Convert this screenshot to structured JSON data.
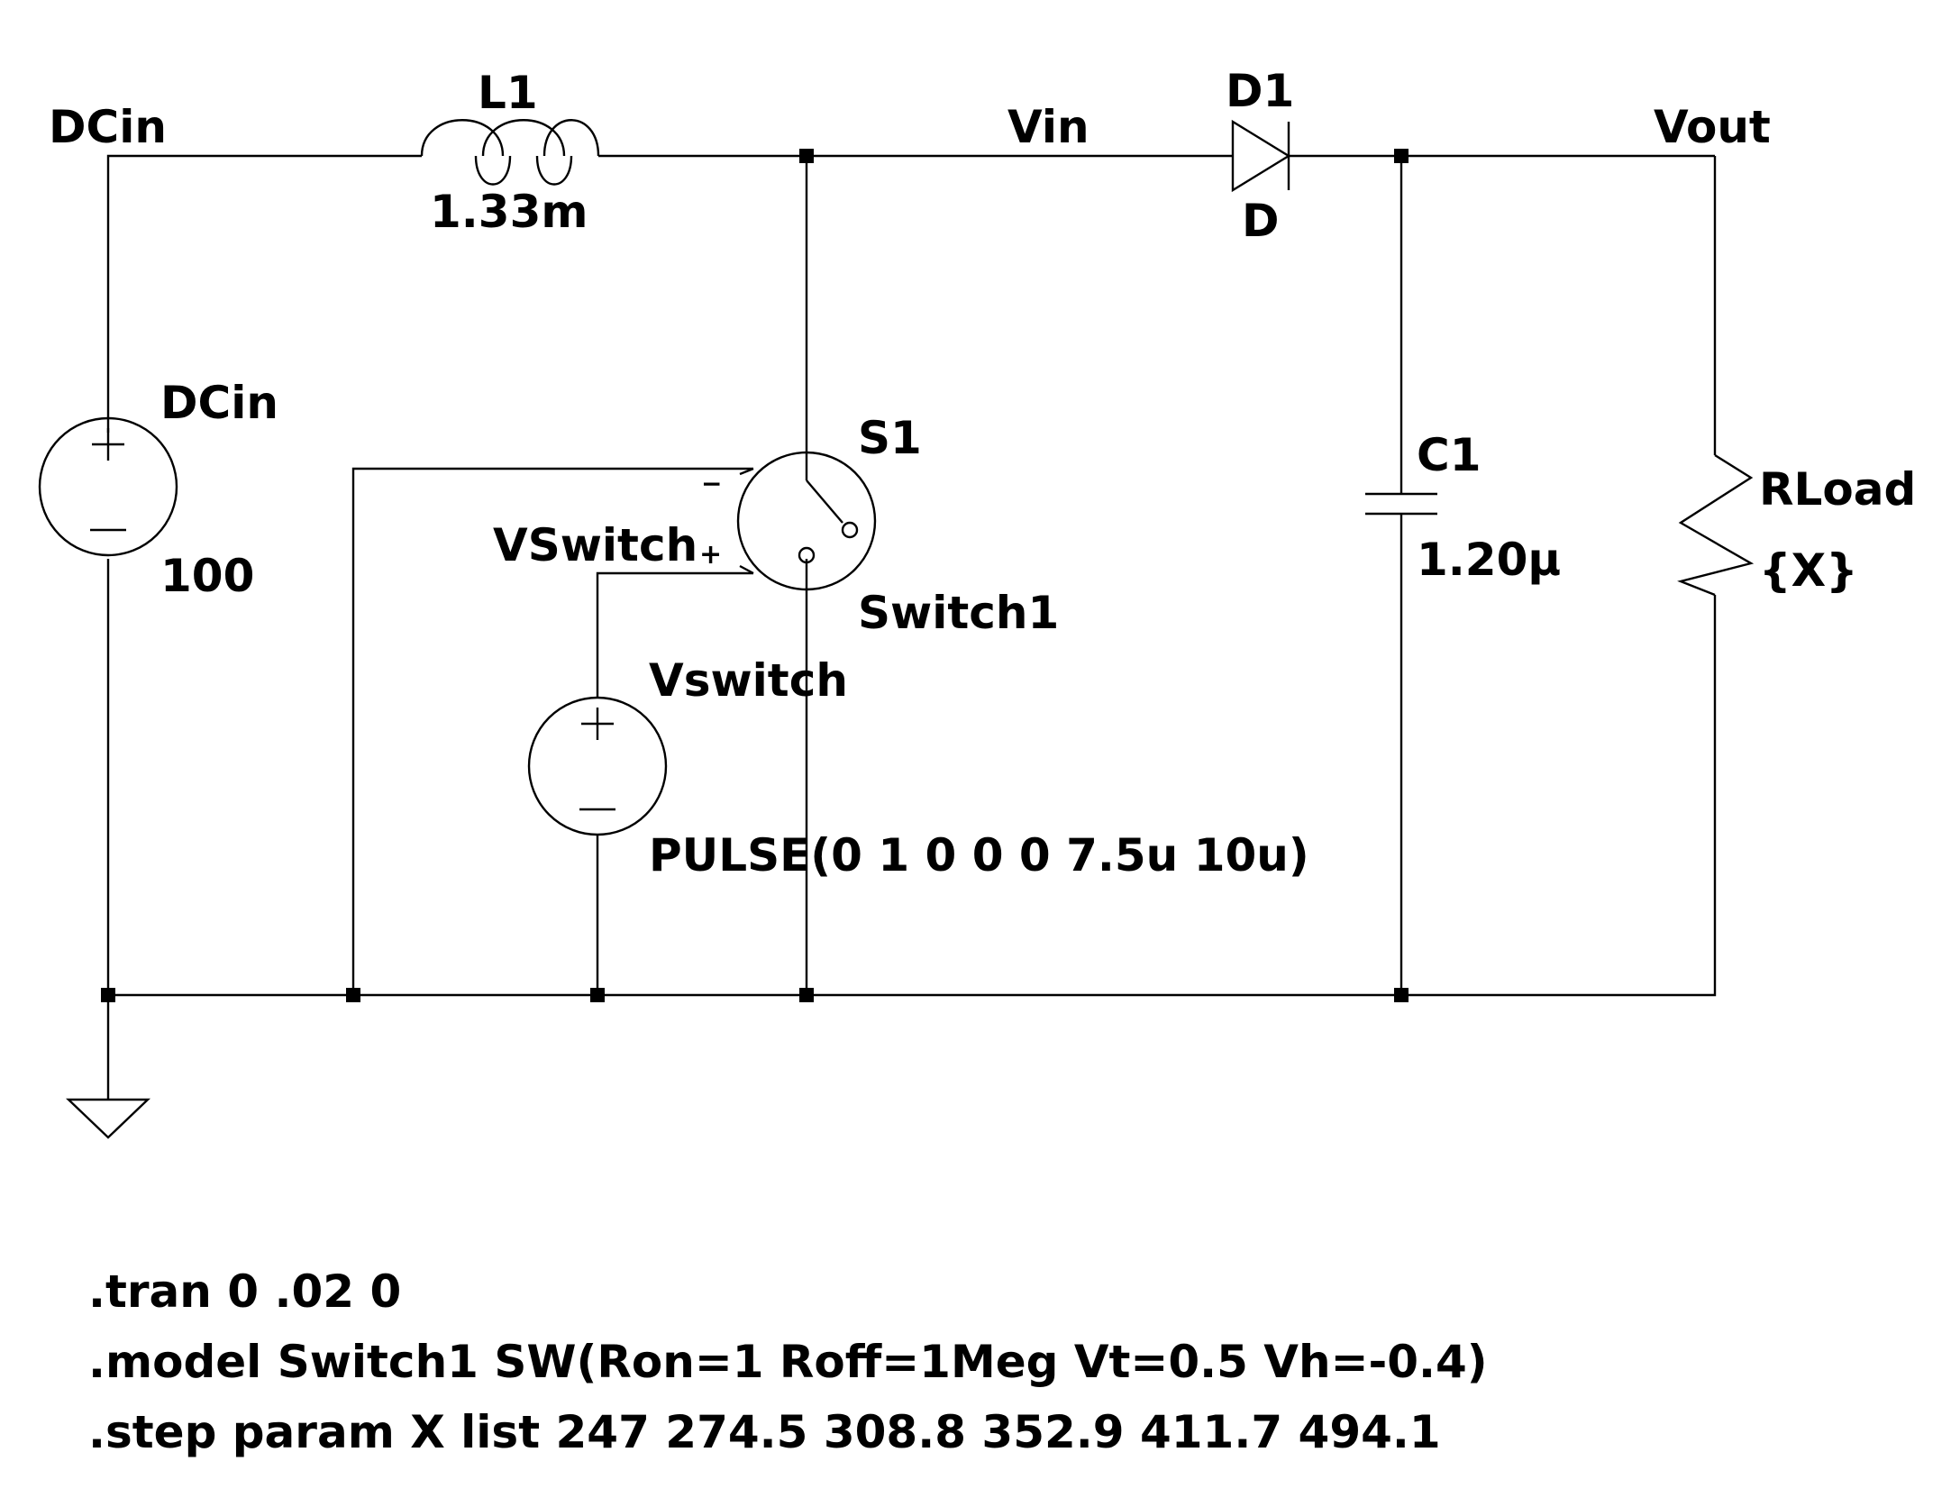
{
  "nets": {
    "dcin": "DCin",
    "vin": "Vin",
    "vout": "Vout",
    "vswitch": "VSwitch"
  },
  "components": {
    "L1": {
      "ref": "L1",
      "value": "1.33m"
    },
    "D1": {
      "ref": "D1",
      "value": "D"
    },
    "C1": {
      "ref": "C1",
      "value": "1.20µ"
    },
    "RLoad": {
      "ref": "RLoad",
      "value": "{X}"
    },
    "DCin": {
      "ref": "DCin",
      "value": "100"
    },
    "S1": {
      "ref": "S1",
      "model": "Switch1"
    },
    "Vswitch": {
      "ref": "Vswitch",
      "value": "PULSE(0 1 0 0 0 7.5u 10u)"
    }
  },
  "switch_pins": {
    "minus": "−",
    "plus": "+"
  },
  "directives": [
    ".tran 0 .02 0",
    ".model Switch1 SW(Ron=1 Roff=1Meg Vt=0.5 Vh=-0.4)",
    ".step param X list 247 274.5 308.8 352.9 411.7 494.1"
  ],
  "colors": {
    "ink": "#000000",
    "background": "#ffffff"
  }
}
